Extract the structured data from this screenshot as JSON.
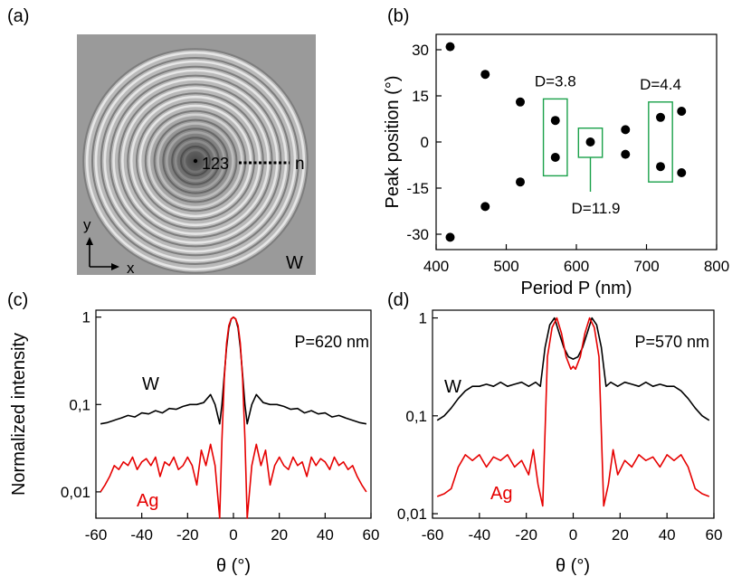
{
  "panels": {
    "a": {
      "label": "(a)",
      "ring_numbers": "123",
      "ring_n": "n",
      "axis_y": "y",
      "axis_x": "x",
      "material": "W",
      "ring_count": 12
    }
  },
  "chart_data": [
    {
      "panel": "(b)",
      "type": "scatter",
      "xlabel": "Period P (nm)",
      "ylabel": "Peak position (°)",
      "xlim": [
        400,
        800
      ],
      "ylim": [
        -35,
        35
      ],
      "xticks": [
        400,
        500,
        600,
        700,
        800
      ],
      "yticks": [
        30,
        15,
        0,
        -15,
        -30
      ],
      "grid": false,
      "points": [
        {
          "x": 420,
          "y": 31
        },
        {
          "x": 420,
          "y": -31
        },
        {
          "x": 470,
          "y": 22
        },
        {
          "x": 470,
          "y": -21
        },
        {
          "x": 520,
          "y": 13
        },
        {
          "x": 520,
          "y": -13
        },
        {
          "x": 570,
          "y": 7
        },
        {
          "x": 570,
          "y": -5
        },
        {
          "x": 620,
          "y": 0
        },
        {
          "x": 670,
          "y": 4
        },
        {
          "x": 670,
          "y": -4
        },
        {
          "x": 720,
          "y": 8
        },
        {
          "x": 720,
          "y": -8
        },
        {
          "x": 750,
          "y": 10
        },
        {
          "x": 750,
          "y": -10
        }
      ],
      "annotations": [
        {
          "text": "D=3.8",
          "box_x": [
            553,
            587
          ],
          "box_y": [
            -11,
            14
          ]
        },
        {
          "text": "D=11.9",
          "box_x": [
            603,
            637
          ],
          "box_y": [
            -5,
            4.5
          ]
        },
        {
          "text": "D=4.4",
          "box_x": [
            703,
            737
          ],
          "box_y": [
            -13,
            13
          ]
        }
      ],
      "accent_color": "#1aa14a"
    },
    {
      "panel": "(c)",
      "type": "line",
      "yscale": "log",
      "xlabel": "θ (°)",
      "ylabel": "Normalized intensity",
      "xlim": [
        -60,
        60
      ],
      "ylim": [
        0.005,
        1.2
      ],
      "xticks": [
        -60,
        -40,
        -20,
        0,
        20,
        40,
        60
      ],
      "ytick_labels": [
        "1",
        "0,1",
        "0,01"
      ],
      "annotation": "P=620 nm",
      "series": [
        {
          "name": "W",
          "color": "#000000",
          "x": [
            -58,
            -55,
            -52,
            -49,
            -46,
            -43,
            -40,
            -37,
            -34,
            -31,
            -28,
            -25,
            -22,
            -19,
            -16,
            -13,
            -10,
            -8,
            -6,
            -5,
            -4,
            -3,
            -2,
            -1,
            0,
            1,
            2,
            3,
            4,
            5,
            6,
            8,
            10,
            13,
            16,
            19,
            22,
            25,
            28,
            31,
            34,
            37,
            40,
            43,
            46,
            49,
            52,
            55,
            58
          ],
          "y": [
            0.06,
            0.062,
            0.066,
            0.07,
            0.075,
            0.072,
            0.08,
            0.078,
            0.085,
            0.08,
            0.09,
            0.088,
            0.095,
            0.1,
            0.1,
            0.105,
            0.13,
            0.1,
            0.06,
            0.1,
            0.22,
            0.45,
            0.75,
            0.95,
            1.0,
            0.95,
            0.75,
            0.45,
            0.22,
            0.1,
            0.06,
            0.1,
            0.13,
            0.105,
            0.1,
            0.1,
            0.095,
            0.088,
            0.09,
            0.08,
            0.085,
            0.078,
            0.08,
            0.072,
            0.075,
            0.07,
            0.066,
            0.062,
            0.06
          ]
        },
        {
          "name": "Ag",
          "color": "#e60000",
          "x": [
            -58,
            -56,
            -54,
            -52,
            -50,
            -48,
            -46,
            -44,
            -42,
            -40,
            -38,
            -36,
            -34,
            -32,
            -30,
            -28,
            -26,
            -24,
            -22,
            -20,
            -18,
            -16,
            -14,
            -12,
            -10,
            -8,
            -6,
            -5,
            -4,
            -3,
            -2,
            -1,
            0,
            1,
            2,
            3,
            4,
            5,
            6,
            8,
            10,
            12,
            14,
            16,
            18,
            20,
            22,
            24,
            26,
            28,
            30,
            32,
            34,
            36,
            38,
            40,
            42,
            44,
            46,
            48,
            50,
            52,
            54,
            56,
            58
          ],
          "y": [
            0.01,
            0.012,
            0.015,
            0.02,
            0.018,
            0.022,
            0.02,
            0.025,
            0.018,
            0.022,
            0.024,
            0.02,
            0.025,
            0.015,
            0.022,
            0.02,
            0.025,
            0.018,
            0.02,
            0.025,
            0.02,
            0.012,
            0.03,
            0.02,
            0.035,
            0.02,
            0.005,
            0.04,
            0.2,
            0.5,
            0.8,
            0.95,
            1.0,
            0.95,
            0.8,
            0.5,
            0.2,
            0.04,
            0.005,
            0.02,
            0.035,
            0.02,
            0.03,
            0.012,
            0.02,
            0.025,
            0.02,
            0.018,
            0.025,
            0.02,
            0.022,
            0.015,
            0.025,
            0.02,
            0.024,
            0.022,
            0.018,
            0.025,
            0.02,
            0.022,
            0.018,
            0.02,
            0.015,
            0.012,
            0.01
          ]
        }
      ],
      "series_labels": [
        "W",
        "Ag"
      ]
    },
    {
      "panel": "(d)",
      "type": "line",
      "yscale": "log",
      "xlabel": "θ (°)",
      "ylabel": "",
      "xlim": [
        -60,
        60
      ],
      "ylim": [
        0.009,
        1.2
      ],
      "xticks": [
        -60,
        -40,
        -20,
        0,
        20,
        40,
        60
      ],
      "ytick_labels": [
        "1",
        "0,1",
        "0,01"
      ],
      "annotation": "P=570 nm",
      "series": [
        {
          "name": "W",
          "color": "#000000",
          "x": [
            -58,
            -55,
            -52,
            -49,
            -46,
            -43,
            -40,
            -37,
            -34,
            -31,
            -28,
            -25,
            -22,
            -19,
            -16,
            -14,
            -12,
            -10,
            -8,
            -6,
            -4,
            -2,
            0,
            2,
            4,
            6,
            8,
            10,
            12,
            14,
            16,
            19,
            22,
            25,
            28,
            31,
            34,
            37,
            40,
            43,
            46,
            49,
            52,
            55,
            58
          ],
          "y": [
            0.09,
            0.1,
            0.12,
            0.15,
            0.18,
            0.2,
            0.2,
            0.21,
            0.2,
            0.22,
            0.2,
            0.21,
            0.22,
            0.2,
            0.22,
            0.2,
            0.5,
            0.85,
            1.0,
            0.7,
            0.5,
            0.4,
            0.38,
            0.4,
            0.5,
            0.7,
            1.0,
            0.85,
            0.5,
            0.2,
            0.22,
            0.2,
            0.22,
            0.21,
            0.2,
            0.22,
            0.2,
            0.21,
            0.2,
            0.2,
            0.18,
            0.15,
            0.12,
            0.1,
            0.09
          ]
        },
        {
          "name": "Ag",
          "color": "#e60000",
          "x": [
            -58,
            -55,
            -52,
            -49,
            -46,
            -43,
            -40,
            -37,
            -34,
            -31,
            -28,
            -25,
            -22,
            -19,
            -17,
            -15,
            -13,
            -11,
            -9,
            -7,
            -5,
            -3,
            -1,
            0,
            1,
            3,
            5,
            7,
            9,
            11,
            13,
            15,
            17,
            19,
            22,
            25,
            28,
            31,
            34,
            37,
            40,
            43,
            46,
            49,
            52,
            55,
            58
          ],
          "y": [
            0.015,
            0.016,
            0.018,
            0.03,
            0.04,
            0.035,
            0.04,
            0.03,
            0.038,
            0.035,
            0.04,
            0.03,
            0.035,
            0.025,
            0.045,
            0.02,
            0.012,
            0.4,
            0.8,
            1.0,
            0.7,
            0.4,
            0.3,
            0.32,
            0.3,
            0.4,
            0.7,
            1.0,
            0.8,
            0.4,
            0.012,
            0.02,
            0.045,
            0.025,
            0.035,
            0.03,
            0.04,
            0.035,
            0.038,
            0.03,
            0.04,
            0.035,
            0.04,
            0.03,
            0.018,
            0.016,
            0.015
          ]
        }
      ],
      "series_labels": [
        "W",
        "Ag"
      ]
    }
  ]
}
